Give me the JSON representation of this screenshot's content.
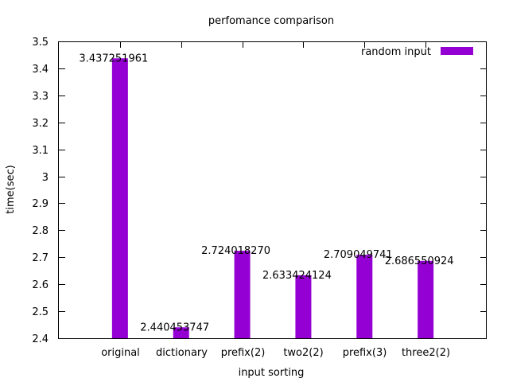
{
  "chart_data": {
    "type": "bar",
    "title": "perfomance comparison",
    "xlabel": "input sorting",
    "ylabel": "time(sec)",
    "categories": [
      "original",
      "dictionary",
      "prefix(2)",
      "two2(2)",
      "prefix(3)",
      "three2(2)"
    ],
    "series": [
      {
        "name": "random input",
        "values": [
          3.437251961,
          2.440453747,
          2.72401827,
          2.633424124,
          2.709049741,
          2.686550924
        ],
        "labels": [
          "3.437251961",
          "2.440453747",
          "2.724018270",
          "2.633424124",
          "2.709049741",
          "2.686550924"
        ],
        "color": "#9400d3"
      }
    ],
    "ylim": [
      2.4,
      3.5
    ],
    "yticks": [
      "2.4",
      "2.5",
      "2.6",
      "2.7",
      "2.8",
      "2.9",
      "3",
      "3.1",
      "3.2",
      "3.3",
      "3.4",
      "3.5"
    ],
    "legend": "top-right",
    "grid": false
  }
}
